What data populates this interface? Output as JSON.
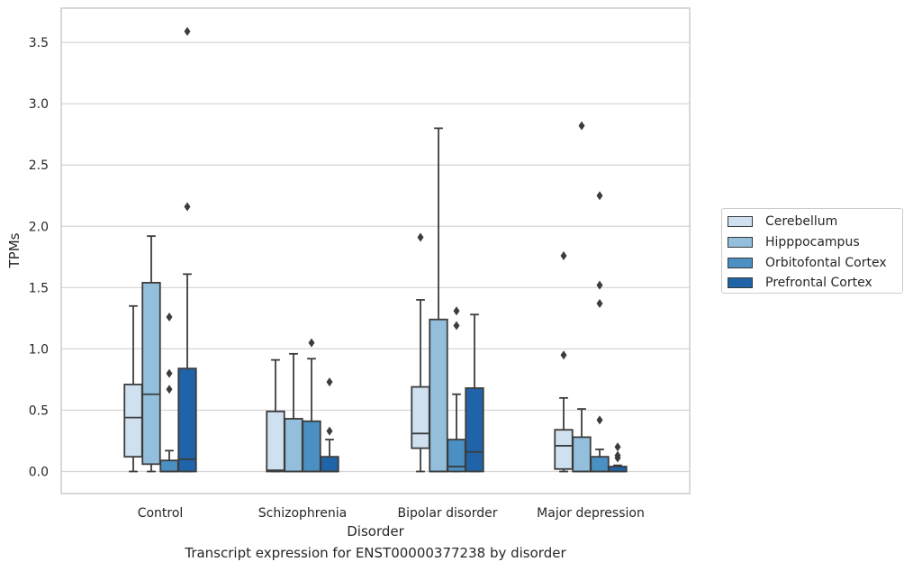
{
  "chart_data": {
    "type": "box",
    "title": "Transcript expression for ENST00000377238 by disorder",
    "xlabel": "Disorder",
    "ylabel": "TPMs",
    "ylim": [
      -0.18,
      3.78
    ],
    "yticks": [
      "0.0",
      "0.5",
      "1.0",
      "1.5",
      "2.0",
      "2.5",
      "3.0",
      "3.5"
    ],
    "grid": true,
    "legend_position": "right",
    "categories": [
      "Control",
      "Schizophrenia",
      "Bipolar disorder",
      "Major depression"
    ],
    "series": [
      {
        "name": "Cerebellum",
        "color": "#cfe0f0",
        "boxes": [
          {
            "whisker_low": 0.0,
            "q1": 0.12,
            "median": 0.44,
            "q3": 0.71,
            "whisker_high": 1.35,
            "outliers": []
          },
          {
            "whisker_low": 0.0,
            "q1": 0.0,
            "median": 0.01,
            "q3": 0.49,
            "whisker_high": 0.91,
            "outliers": []
          },
          {
            "whisker_low": 0.0,
            "q1": 0.19,
            "median": 0.31,
            "q3": 0.69,
            "whisker_high": 1.4,
            "outliers": [
              1.91
            ]
          },
          {
            "whisker_low": 0.0,
            "q1": 0.02,
            "median": 0.21,
            "q3": 0.34,
            "whisker_high": 0.6,
            "outliers": [
              0.95,
              1.76
            ]
          }
        ]
      },
      {
        "name": "Hipppocampus",
        "color": "#93bfdc",
        "boxes": [
          {
            "whisker_low": 0.0,
            "q1": 0.06,
            "median": 0.63,
            "q3": 1.54,
            "whisker_high": 1.92,
            "outliers": []
          },
          {
            "whisker_low": 0.0,
            "q1": 0.0,
            "median": 0.0,
            "q3": 0.43,
            "whisker_high": 0.96,
            "outliers": []
          },
          {
            "whisker_low": 0.0,
            "q1": 0.0,
            "median": 0.0,
            "q3": 1.24,
            "whisker_high": 2.8,
            "outliers": []
          },
          {
            "whisker_low": 0.0,
            "q1": 0.0,
            "median": 0.0,
            "q3": 0.28,
            "whisker_high": 0.51,
            "outliers": [
              2.82
            ]
          }
        ]
      },
      {
        "name": "Orbitofontal Cortex",
        "color": "#4a90c2",
        "boxes": [
          {
            "whisker_low": 0.0,
            "q1": 0.0,
            "median": 0.0,
            "q3": 0.09,
            "whisker_high": 0.17,
            "outliers": [
              0.67,
              0.8,
              1.26
            ]
          },
          {
            "whisker_low": 0.0,
            "q1": 0.0,
            "median": 0.0,
            "q3": 0.41,
            "whisker_high": 0.92,
            "outliers": [
              1.05
            ]
          },
          {
            "whisker_low": 0.0,
            "q1": 0.0,
            "median": 0.04,
            "q3": 0.26,
            "whisker_high": 0.63,
            "outliers": [
              1.19,
              1.31
            ]
          },
          {
            "whisker_low": 0.0,
            "q1": 0.0,
            "median": 0.0,
            "q3": 0.12,
            "whisker_high": 0.18,
            "outliers": [
              0.42,
              1.37,
              1.52,
              2.25
            ]
          }
        ]
      },
      {
        "name": "Prefrontal Cortex",
        "color": "#1f63a8",
        "boxes": [
          {
            "whisker_low": 0.0,
            "q1": 0.0,
            "median": 0.1,
            "q3": 0.84,
            "whisker_high": 1.61,
            "outliers": [
              2.16,
              3.59
            ]
          },
          {
            "whisker_low": 0.0,
            "q1": 0.0,
            "median": 0.0,
            "q3": 0.12,
            "whisker_high": 0.26,
            "outliers": [
              0.33,
              0.73
            ]
          },
          {
            "whisker_low": 0.0,
            "q1": 0.0,
            "median": 0.16,
            "q3": 0.68,
            "whisker_high": 1.28,
            "outliers": []
          },
          {
            "whisker_low": 0.0,
            "q1": 0.0,
            "median": 0.0,
            "q3": 0.04,
            "whisker_high": 0.05,
            "outliers": [
              0.11,
              0.13,
              0.2
            ]
          }
        ]
      }
    ]
  }
}
